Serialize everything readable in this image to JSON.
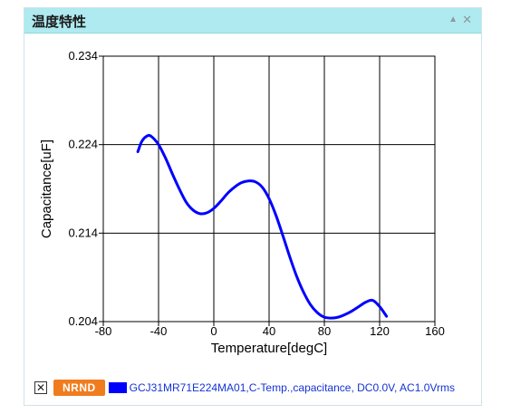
{
  "panel": {
    "title": "温度特性",
    "collapse_icon": "triangle-up-icon",
    "close_icon": "close-icon"
  },
  "legend": {
    "remove_label": "✕",
    "status_badge": "NRND",
    "status_color": "#f07c1e",
    "series_label": "GCJ31MR71E224MA01,C-Temp.,capacitance, DC0.0V, AC1.0Vrms",
    "series_color": "#0000ff",
    "label_color": "#1433d6"
  },
  "chart_data": {
    "type": "line",
    "xlabel": "Temperature[degC]",
    "ylabel": "Capacitance[uF]",
    "xlim": [
      -80,
      160
    ],
    "ylim": [
      0.204,
      0.234
    ],
    "xticks": [
      -80,
      -40,
      0,
      40,
      80,
      120,
      160
    ],
    "yticks": [
      0.204,
      0.214,
      0.224,
      0.234
    ],
    "ytick_labels": [
      "0.204",
      "0.214",
      "0.224",
      "0.234"
    ],
    "grid": true,
    "series": [
      {
        "color": "#0000ff",
        "x": [
          -55,
          -52,
          -48,
          -45,
          -40,
          -35,
          -30,
          -25,
          -20,
          -15,
          -10,
          -5,
          0,
          5,
          10,
          15,
          20,
          25,
          30,
          35,
          40,
          45,
          50,
          55,
          60,
          65,
          70,
          75,
          80,
          85,
          90,
          95,
          100,
          105,
          110,
          115,
          120,
          125
        ],
        "values": [
          0.2232,
          0.2244,
          0.225,
          0.2249,
          0.224,
          0.2225,
          0.2207,
          0.219,
          0.2175,
          0.2166,
          0.2162,
          0.2163,
          0.2168,
          0.2176,
          0.2185,
          0.2192,
          0.2197,
          0.2199,
          0.2198,
          0.2192,
          0.2179,
          0.216,
          0.2137,
          0.2113,
          0.2091,
          0.2073,
          0.2059,
          0.205,
          0.2045,
          0.2044,
          0.2045,
          0.2048,
          0.2052,
          0.2057,
          0.2062,
          0.2064,
          0.2057,
          0.2046
        ]
      }
    ]
  }
}
